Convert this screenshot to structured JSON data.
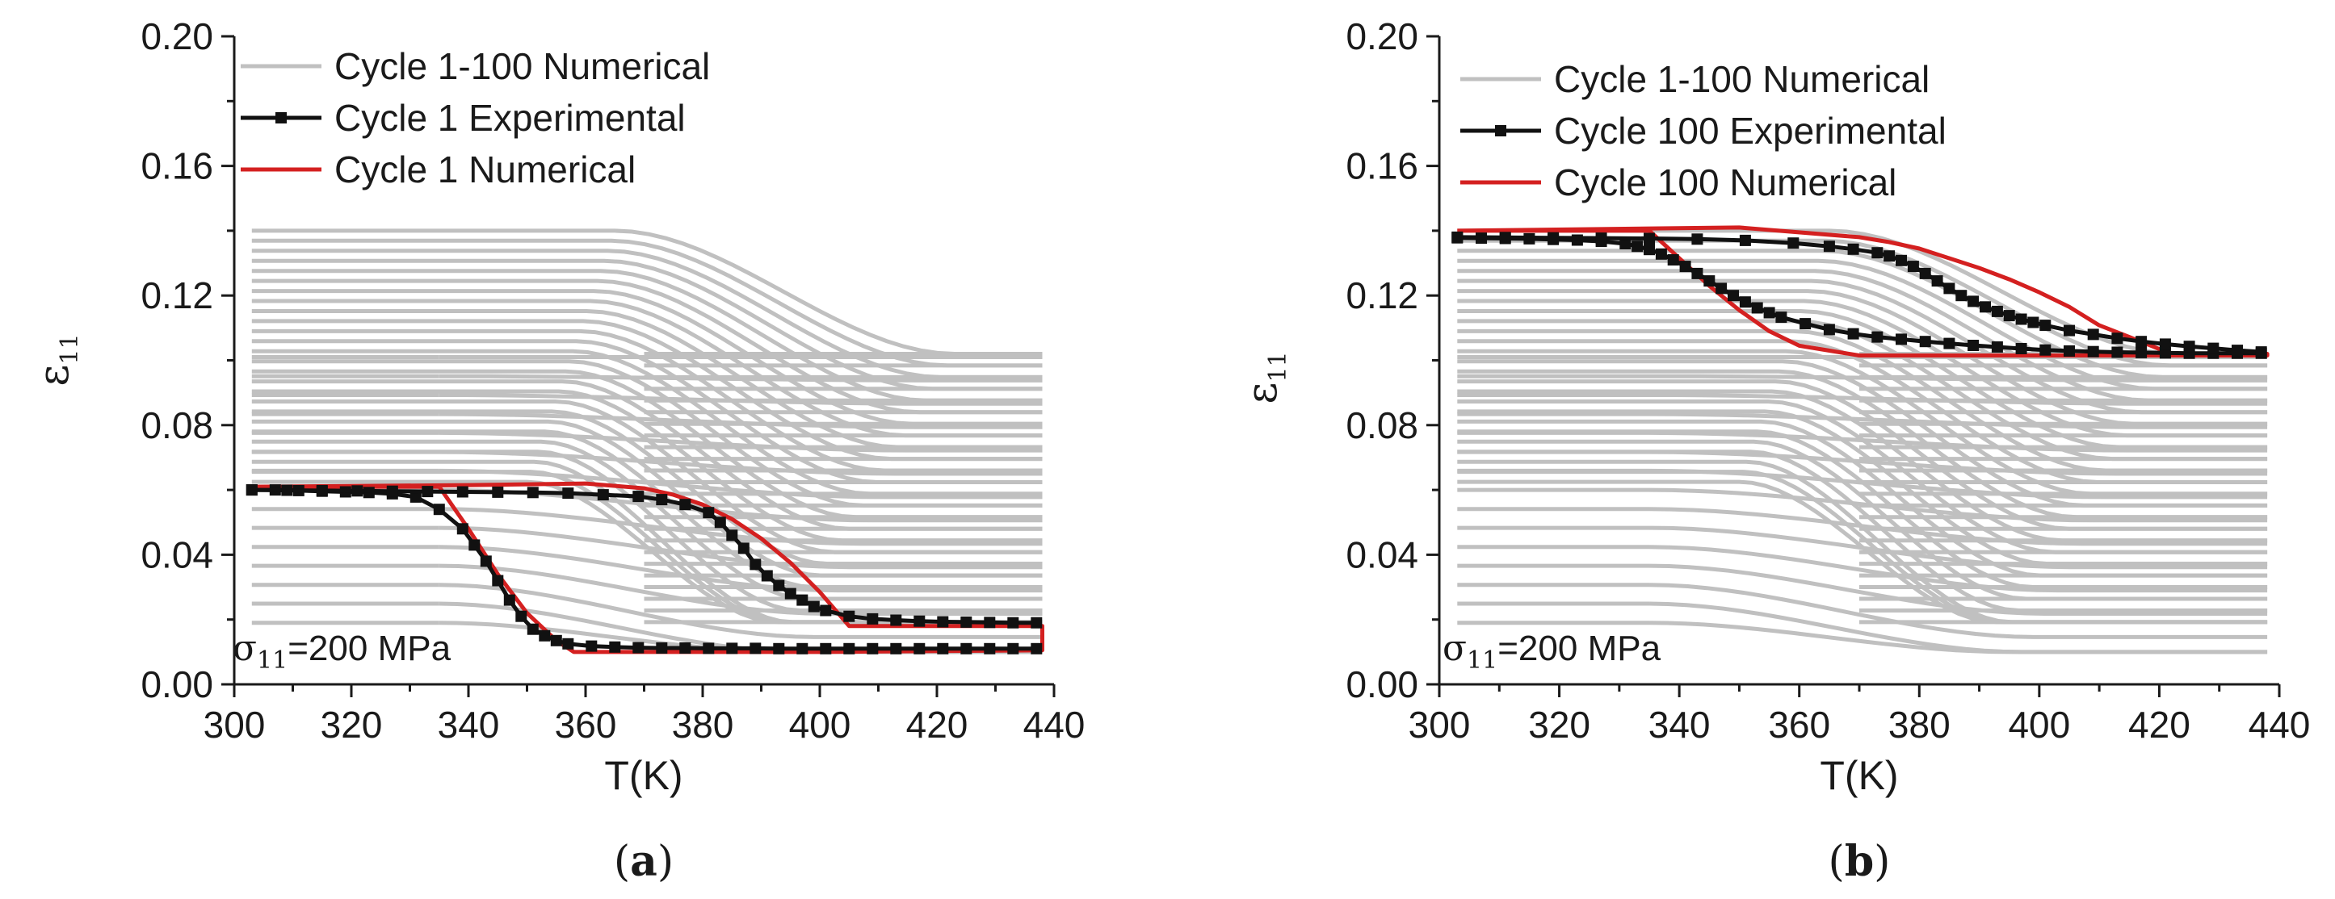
{
  "chart_data": [
    {
      "type": "line",
      "panel": "a",
      "caption": {
        "open": "(",
        "letter": "a",
        "close": ")"
      },
      "xlabel": "T(K)",
      "ylabel": {
        "symbol": "ε",
        "sub": "11"
      },
      "xlim": [
        300,
        440
      ],
      "ylim": [
        0.0,
        0.2
      ],
      "xticks": [
        300,
        320,
        340,
        360,
        380,
        400,
        420,
        440
      ],
      "yticks": [
        0.0,
        0.04,
        0.08,
        0.12,
        0.16,
        0.2
      ],
      "ytick_labels": [
        "0.00",
        "0.04",
        "0.08",
        "0.12",
        "0.16",
        "0.20"
      ],
      "annotation": {
        "symbol": "σ",
        "sub": "11",
        "text": "=200 MPa"
      },
      "legend": [
        {
          "label": "Cycle 1-100 Numerical",
          "color": "#c0c0c0",
          "marker": false
        },
        {
          "label": "Cycle 1 Experimental",
          "color": "#111111",
          "marker": true
        },
        {
          "label": "Cycle 1 Numerical",
          "color": "#d42020",
          "marker": false
        }
      ],
      "background_cycles": {
        "label": "Cycle 1-100 Numerical",
        "color": "#c0c0c0",
        "t_start": 303,
        "t_end": 438,
        "heating_levels": [
          0.14,
          0.1369,
          0.1338,
          0.1307,
          0.1276,
          0.1245,
          0.1214,
          0.1183,
          0.1152,
          0.1121,
          0.109,
          0.1059,
          0.1028,
          0.0997,
          0.0966,
          0.0935,
          0.0904,
          0.0873,
          0.0842,
          0.0811,
          0.078,
          0.0749,
          0.0718,
          0.0687,
          0.0656,
          0.0625
        ],
        "cooling_levels": [
          0.102,
          0.0984,
          0.0948,
          0.0912,
          0.0876,
          0.084,
          0.0804,
          0.0768,
          0.0732,
          0.0696,
          0.066,
          0.0624,
          0.0588,
          0.0552,
          0.0516,
          0.048,
          0.0444,
          0.0408,
          0.0372,
          0.0336,
          0.03,
          0.0264,
          0.0228,
          0.0192
        ],
        "fan_low_start": [
          0.101,
          0.0951,
          0.0893,
          0.0834,
          0.0776,
          0.0717,
          0.0659,
          0.06,
          0.0541,
          0.0483,
          0.0424,
          0.0366,
          0.0307,
          0.0249,
          0.019
        ],
        "fan_low_end": [
          0.101,
          0.0938,
          0.0866,
          0.0794,
          0.0722,
          0.065,
          0.0578,
          0.0506,
          0.0434,
          0.0362,
          0.029,
          0.0218,
          0.0146,
          0.01
        ],
        "fan_t_start": 335,
        "fan_t_end": [
          423,
          421,
          419,
          417,
          415,
          413,
          411,
          409,
          407,
          405,
          403,
          401,
          399,
          397,
          395
        ]
      },
      "series": [
        {
          "name": "Cycle 1 Experimental",
          "style": "line-with-square-markers",
          "color": "#111111",
          "branches": [
            {
              "x": [
                303,
                307,
                311,
                315,
                319,
                323,
                327,
                331,
                335,
                339,
                341,
                343,
                345,
                347,
                349,
                351,
                353,
                355,
                357,
                361,
                365,
                369,
                373,
                377,
                381,
                385,
                389,
                393,
                397,
                401,
                405,
                409,
                413,
                417,
                421,
                425,
                429,
                433,
                437
              ],
              "y": [
                0.06,
                0.06,
                0.0598,
                0.0596,
                0.0594,
                0.0592,
                0.0588,
                0.0578,
                0.054,
                0.048,
                0.043,
                0.038,
                0.032,
                0.026,
                0.021,
                0.017,
                0.015,
                0.0135,
                0.0125,
                0.0118,
                0.0115,
                0.0113,
                0.0112,
                0.0112,
                0.0111,
                0.0111,
                0.0111,
                0.011,
                0.011,
                0.011,
                0.011,
                0.011,
                0.011,
                0.011,
                0.011,
                0.011,
                0.011,
                0.011,
                0.011
              ]
            },
            {
              "x": [
                303,
                309,
                315,
                321,
                327,
                333,
                339,
                345,
                351,
                357,
                363,
                369,
                373,
                377,
                381,
                383,
                385,
                387,
                389,
                391,
                393,
                395,
                397,
                399,
                401,
                405,
                409,
                413,
                417,
                421,
                425,
                429,
                433,
                437
              ],
              "y": [
                0.06,
                0.0599,
                0.0598,
                0.0597,
                0.0596,
                0.0595,
                0.0594,
                0.0593,
                0.0592,
                0.059,
                0.0585,
                0.058,
                0.057,
                0.0555,
                0.053,
                0.05,
                0.046,
                0.042,
                0.037,
                0.0335,
                0.0305,
                0.028,
                0.026,
                0.024,
                0.0228,
                0.021,
                0.0202,
                0.0198,
                0.0195,
                0.0193,
                0.0192,
                0.0191,
                0.019,
                0.019
              ]
            }
          ]
        },
        {
          "name": "Cycle 1 Numerical",
          "color": "#d42020",
          "loop": {
            "x": [
              303,
              320,
              335,
              340,
              345,
              350,
              355,
              358,
              370,
              400,
              438,
              438,
              420,
              405,
              400,
              395,
              390,
              385,
              380,
              375,
              370,
              360,
              340,
              320,
              303
            ],
            "y": [
              0.061,
              0.061,
              0.061,
              0.048,
              0.034,
              0.022,
              0.0135,
              0.01,
              0.01,
              0.01,
              0.0105,
              0.018,
              0.018,
              0.018,
              0.0285,
              0.0375,
              0.045,
              0.051,
              0.0555,
              0.0585,
              0.0605,
              0.062,
              0.0615,
              0.0612,
              0.061
            ]
          }
        }
      ]
    },
    {
      "type": "line",
      "panel": "b",
      "caption": {
        "open": "(",
        "letter": "b",
        "close": ")"
      },
      "xlabel": "T(K)",
      "ylabel": {
        "symbol": "ε",
        "sub": "11"
      },
      "xlim": [
        300,
        440
      ],
      "ylim": [
        0.0,
        0.2
      ],
      "xticks": [
        300,
        320,
        340,
        360,
        380,
        400,
        420,
        440
      ],
      "yticks": [
        0.0,
        0.04,
        0.08,
        0.12,
        0.16,
        0.2
      ],
      "ytick_labels": [
        "0.00",
        "0.04",
        "0.08",
        "0.12",
        "0.16",
        "0.20"
      ],
      "annotation": {
        "symbol": "σ",
        "sub": "11",
        "text": "=200 MPa"
      },
      "legend": [
        {
          "label": "Cycle 1-100 Numerical",
          "color": "#c0c0c0",
          "marker": false
        },
        {
          "label": "Cycle 100 Experimental",
          "color": "#111111",
          "marker": true
        },
        {
          "label": "Cycle 100 Numerical",
          "color": "#d42020",
          "marker": false
        }
      ],
      "background_cycles": {
        "label": "Cycle 1-100 Numerical",
        "color": "#c0c0c0",
        "t_start": 303,
        "t_end": 438,
        "heating_levels": [
          0.14,
          0.1369,
          0.1338,
          0.1307,
          0.1276,
          0.1245,
          0.1214,
          0.1183,
          0.1152,
          0.1121,
          0.109,
          0.1059,
          0.1028,
          0.0997,
          0.0966,
          0.0935,
          0.0904,
          0.0873,
          0.0842,
          0.0811,
          0.078,
          0.0749,
          0.0718,
          0.0687,
          0.0656,
          0.0625
        ],
        "cooling_levels": [
          0.102,
          0.0984,
          0.0948,
          0.0912,
          0.0876,
          0.084,
          0.0804,
          0.0768,
          0.0732,
          0.0696,
          0.066,
          0.0624,
          0.0588,
          0.0552,
          0.0516,
          0.048,
          0.0444,
          0.0408,
          0.0372,
          0.0336,
          0.03,
          0.0264,
          0.0228,
          0.0192
        ],
        "fan_low_start": [
          0.101,
          0.0951,
          0.0893,
          0.0834,
          0.0776,
          0.0717,
          0.0659,
          0.06,
          0.0541,
          0.0483,
          0.0424,
          0.0366,
          0.0307,
          0.0249,
          0.019
        ],
        "fan_low_end": [
          0.101,
          0.0938,
          0.0866,
          0.0794,
          0.0722,
          0.065,
          0.0578,
          0.0506,
          0.0434,
          0.0362,
          0.029,
          0.0218,
          0.0146,
          0.01
        ],
        "fan_t_start": 335,
        "fan_t_end": [
          423,
          421,
          419,
          417,
          415,
          413,
          411,
          409,
          407,
          405,
          403,
          401,
          399,
          397,
          395
        ]
      },
      "series": [
        {
          "name": "Cycle 100 Experimental",
          "style": "line-with-square-markers",
          "color": "#111111",
          "branches": [
            {
              "x": [
                303,
                307,
                311,
                315,
                319,
                323,
                327,
                331,
                333,
                335,
                337,
                339,
                341,
                343,
                345,
                347,
                349,
                351,
                353,
                355,
                357,
                361,
                365,
                369,
                373,
                377,
                381,
                385,
                389,
                393,
                397,
                401,
                405,
                409,
                413,
                417,
                421,
                425,
                429,
                433,
                437
              ],
              "y": [
                0.1378,
                0.1377,
                0.1376,
                0.1375,
                0.1373,
                0.1371,
                0.1367,
                0.136,
                0.1352,
                0.1342,
                0.1328,
                0.131,
                0.129,
                0.1268,
                0.1245,
                0.1222,
                0.12,
                0.118,
                0.1162,
                0.1147,
                0.1133,
                0.1113,
                0.1095,
                0.1082,
                0.1072,
                0.1065,
                0.1058,
                0.1052,
                0.1046,
                0.1041,
                0.1036,
                0.1032,
                0.1029,
                0.1027,
                0.1025,
                0.1024,
                0.1023,
                0.1022,
                0.1022,
                0.1022,
                0.1022
              ]
            },
            {
              "x": [
                303,
                311,
                319,
                327,
                335,
                343,
                351,
                359,
                365,
                369,
                373,
                375,
                377,
                379,
                381,
                383,
                385,
                387,
                389,
                391,
                393,
                395,
                397,
                399,
                401,
                405,
                409,
                413,
                417,
                421,
                425,
                429,
                433,
                437
              ],
              "y": [
                0.138,
                0.1379,
                0.1378,
                0.1377,
                0.1376,
                0.1374,
                0.137,
                0.1362,
                0.1352,
                0.1343,
                0.1332,
                0.1322,
                0.1308,
                0.129,
                0.1268,
                0.1245,
                0.1222,
                0.12,
                0.1182,
                0.1165,
                0.1151,
                0.1138,
                0.1127,
                0.1117,
                0.1108,
                0.1092,
                0.108,
                0.1068,
                0.1058,
                0.105,
                0.1043,
                0.1037,
                0.1031,
                0.1026
              ]
            }
          ]
        },
        {
          "name": "Cycle 100 Numerical",
          "color": "#d42020",
          "loop": {
            "x": [
              303,
              320,
              335,
              340,
              345,
              350,
              355,
              360,
              370,
              400,
              438,
              438,
              422,
              415,
              410,
              405,
              400,
              395,
              390,
              385,
              380,
              375,
              370,
              350,
              303
            ],
            "y": [
              0.14,
              0.14,
              0.14,
              0.1315,
              0.123,
              0.1155,
              0.109,
              0.1045,
              0.1015,
              0.1015,
              0.1015,
              0.102,
              0.102,
              0.1072,
              0.1108,
              0.1165,
              0.121,
              0.125,
              0.1285,
              0.1315,
              0.1345,
              0.1365,
              0.138,
              0.141,
              0.14
            ]
          }
        }
      ]
    }
  ]
}
